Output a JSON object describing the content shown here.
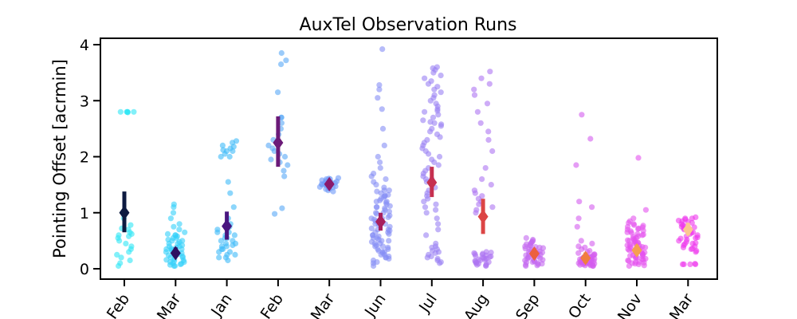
{
  "chart_data": {
    "type": "scatter",
    "subtype": "strip-plot-with-mean-and-error",
    "title": "AuxTel Observation Runs",
    "xlabel": "",
    "ylabel": "Pointing Offset [acrmin]",
    "ylim": [
      -0.2,
      4.1
    ],
    "yticks": [
      0,
      1,
      2,
      3,
      4
    ],
    "grid": false,
    "legend": "none",
    "categories": [
      "Feb",
      "Mar",
      "Jan",
      "Feb",
      "Mar",
      "Jun",
      "Jul",
      "Aug",
      "Sep",
      "Oct",
      "Nov",
      "Mar"
    ],
    "means": [
      1.0,
      0.28,
      0.76,
      2.25,
      1.51,
      0.84,
      1.54,
      0.93,
      0.27,
      0.19,
      0.33,
      0.7
    ],
    "err_low": [
      0.65,
      0.2,
      0.52,
      1.82,
      1.45,
      0.68,
      1.28,
      0.62,
      0.18,
      0.1,
      0.25,
      0.6
    ],
    "err_high": [
      1.38,
      0.38,
      1.02,
      2.72,
      1.58,
      1.0,
      1.82,
      1.25,
      0.36,
      0.29,
      0.43,
      0.82
    ],
    "point_colors": [
      "#2ee6f5",
      "#33d0fa",
      "#3fbaf8",
      "#59a8f7",
      "#6e9af8",
      "#858ef5",
      "#9980f3",
      "#ad74f2",
      "#c367f0",
      "#d35bef",
      "#e451ee",
      "#ef38ec"
    ],
    "marker_colors": [
      "#0d1a40",
      "#2e1060",
      "#4a1680",
      "#6b1a78",
      "#8a1a6c",
      "#a8205e",
      "#c63050",
      "#dc4545",
      "#ec6040",
      "#f07e40",
      "#f6a050",
      "#fbc890"
    ],
    "points": [
      [
        2.8,
        2.8,
        2.8,
        2.8,
        2.79,
        2.8,
        0.55,
        0.62,
        0.7,
        0.78,
        0.3,
        0.2,
        0.15,
        0.05,
        0.45,
        0.5,
        0.6,
        0.65,
        0.4,
        0.35,
        0.25,
        0.9,
        0.58,
        0.72,
        0.1
      ],
      [
        0.1,
        0.15,
        0.2,
        0.25,
        0.3,
        0.35,
        0.4,
        0.45,
        0.5,
        0.55,
        0.6,
        0.65,
        0.05,
        0.08,
        0.12,
        0.18,
        0.22,
        0.28,
        0.32,
        0.38,
        0.42,
        0.48,
        0.52,
        0.58,
        0.62,
        0.7,
        0.75,
        0.8,
        0.9,
        1.0,
        1.1,
        1.15,
        0.12,
        0.14,
        0.16,
        0.2,
        0.24,
        0.26,
        0.3,
        0.34,
        0.36,
        0.05,
        0.07,
        0.09,
        0.6,
        0.55,
        0.5,
        0.45,
        0.4,
        0.35
      ],
      [
        0.15,
        0.2,
        0.25,
        0.3,
        0.35,
        0.4,
        0.45,
        0.5,
        0.55,
        0.6,
        0.65,
        0.7,
        0.75,
        2.0,
        2.05,
        2.1,
        2.15,
        2.2,
        2.25,
        2.28,
        2.1,
        2.0,
        1.55,
        1.35,
        1.1,
        0.9,
        0.8,
        0.3,
        0.25,
        0.2,
        0.4,
        0.45,
        0.5,
        2.12,
        2.18,
        0.35,
        0.42,
        0.55,
        0.6,
        0.65
      ],
      [
        0.98,
        1.08,
        1.65,
        1.75,
        1.85,
        1.9,
        2.0,
        2.1,
        2.2,
        2.3,
        2.4,
        2.5,
        2.6,
        2.7,
        3.15,
        3.65,
        3.72,
        3.85,
        1.95,
        2.05,
        2.15,
        2.7
      ],
      [
        1.4,
        1.42,
        1.45,
        1.48,
        1.5,
        1.52,
        1.55,
        1.58,
        1.6,
        1.62,
        1.38,
        1.43,
        1.47,
        1.53,
        1.57,
        1.61,
        1.44,
        1.5,
        1.56,
        1.6,
        1.46,
        1.54,
        1.49,
        1.51
      ],
      [
        0.05,
        0.1,
        0.15,
        0.2,
        0.25,
        0.3,
        0.35,
        0.4,
        0.45,
        0.5,
        0.55,
        0.6,
        0.65,
        0.7,
        0.75,
        0.8,
        0.85,
        0.9,
        0.95,
        1.0,
        1.05,
        1.1,
        1.15,
        1.2,
        1.25,
        1.3,
        1.35,
        1.4,
        1.45,
        1.5,
        1.55,
        1.6,
        1.65,
        1.7,
        1.8,
        1.9,
        2.0,
        2.2,
        2.5,
        2.85,
        3.05,
        3.2,
        3.28,
        3.92,
        0.12,
        0.18,
        0.22,
        0.28,
        0.32,
        0.38,
        0.42,
        0.48,
        0.52,
        0.58,
        0.62,
        0.68,
        0.72,
        0.78,
        0.82,
        0.88,
        0.92,
        0.98,
        1.02,
        1.08,
        1.12,
        1.18,
        1.22,
        1.28,
        1.32,
        1.38,
        0.2,
        0.3,
        0.4,
        0.5,
        0.6,
        0.7,
        0.8,
        0.9,
        1.0,
        1.1,
        1.2,
        1.3,
        1.4,
        0.25,
        0.35,
        0.45,
        0.55,
        0.65
      ],
      [
        0.1,
        0.15,
        0.2,
        0.25,
        0.3,
        0.35,
        0.4,
        0.45,
        0.6,
        0.7,
        0.8,
        0.9,
        1.0,
        1.1,
        1.2,
        1.3,
        1.4,
        1.5,
        1.6,
        1.7,
        1.8,
        1.9,
        2.0,
        2.1,
        2.2,
        2.3,
        2.4,
        2.5,
        2.6,
        2.7,
        2.8,
        2.9,
        3.0,
        3.1,
        3.2,
        3.3,
        3.4,
        3.5,
        3.58,
        3.6,
        2.62,
        2.65,
        2.58,
        2.82,
        2.85,
        1.55,
        1.6,
        1.45,
        2.35,
        2.45,
        3.35,
        3.45,
        3.55,
        0.22,
        0.28,
        0.32,
        0.38,
        1.05,
        1.15,
        1.25,
        1.35,
        1.65,
        1.75,
        1.85,
        1.95,
        2.05,
        2.15,
        2.25,
        0.12,
        0.18,
        3.05,
        3.15,
        3.25,
        2.95,
        2.75,
        2.55
      ],
      [
        0.05,
        0.08,
        0.1,
        0.12,
        0.15,
        0.18,
        0.2,
        0.22,
        0.25,
        0.28,
        0.3,
        1.0,
        1.05,
        1.1,
        1.2,
        1.3,
        1.4,
        1.5,
        1.6,
        1.8,
        2.1,
        2.3,
        2.45,
        2.6,
        2.8,
        2.95,
        3.1,
        3.2,
        3.3,
        3.4,
        3.52,
        0.06,
        0.09,
        0.11,
        0.14,
        0.16,
        0.19,
        0.24,
        0.26,
        1.15,
        1.25,
        1.35,
        0.07,
        0.13,
        0.17,
        0.21,
        0.23,
        0.27,
        0.29
      ],
      [
        0.05,
        0.08,
        0.1,
        0.12,
        0.15,
        0.18,
        0.2,
        0.22,
        0.25,
        0.28,
        0.3,
        0.32,
        0.35,
        0.38,
        0.4,
        0.42,
        0.45,
        0.48,
        0.5,
        0.52,
        0.55,
        0.07,
        0.09,
        0.11,
        0.13,
        0.16,
        0.19,
        0.21,
        0.24,
        0.26,
        0.29,
        0.31,
        0.34,
        0.37,
        0.41,
        0.44,
        0.47,
        0.06,
        0.14,
        0.17,
        0.23,
        0.27,
        0.33,
        0.36,
        0.39
      ],
      [
        0.05,
        0.06,
        0.07,
        0.08,
        0.09,
        0.1,
        0.11,
        0.12,
        0.13,
        0.14,
        0.15,
        0.16,
        0.17,
        0.18,
        0.19,
        0.2,
        0.21,
        0.22,
        0.23,
        0.24,
        0.25,
        0.26,
        0.28,
        0.3,
        0.32,
        0.35,
        0.38,
        0.4,
        0.45,
        0.5,
        0.75,
        0.9,
        1.1,
        1.2,
        1.85,
        2.32,
        2.75,
        0.05,
        0.07,
        0.09,
        0.11,
        0.13,
        0.15,
        0.17,
        0.19,
        0.21,
        0.06,
        0.08,
        0.1,
        0.12,
        0.14,
        0.16,
        0.18,
        0.2
      ],
      [
        0.05,
        0.08,
        0.1,
        0.12,
        0.15,
        0.18,
        0.2,
        0.22,
        0.25,
        0.28,
        0.3,
        0.32,
        0.35,
        0.38,
        0.4,
        0.42,
        0.45,
        0.48,
        0.5,
        0.52,
        0.55,
        0.58,
        0.6,
        0.62,
        0.65,
        0.68,
        0.7,
        0.72,
        0.75,
        0.78,
        0.8,
        0.82,
        0.85,
        0.9,
        1.05,
        1.98,
        0.06,
        0.09,
        0.11,
        0.14,
        0.17,
        0.19,
        0.21,
        0.24,
        0.27,
        0.29,
        0.31,
        0.34,
        0.37,
        0.41,
        0.44,
        0.47,
        0.51,
        0.54,
        0.57,
        0.61,
        0.64,
        0.67,
        0.71,
        0.74,
        0.77,
        0.12,
        0.16,
        0.23,
        0.26,
        0.33,
        0.36,
        0.39,
        0.43,
        0.46,
        0.49
      ],
      [
        0.08,
        0.08,
        0.08,
        0.09,
        0.08,
        0.3,
        0.35,
        0.4,
        0.45,
        0.5,
        0.55,
        0.6,
        0.65,
        0.7,
        0.75,
        0.8,
        0.85,
        0.9,
        0.92,
        0.88,
        0.82,
        0.78,
        0.72,
        0.68,
        0.62,
        0.58,
        0.52,
        0.48,
        0.42,
        0.38,
        0.32,
        0.36,
        0.44,
        0.54,
        0.64,
        0.74,
        0.84,
        0.9,
        0.86,
        0.76,
        0.66,
        0.56,
        0.46
      ]
    ]
  }
}
